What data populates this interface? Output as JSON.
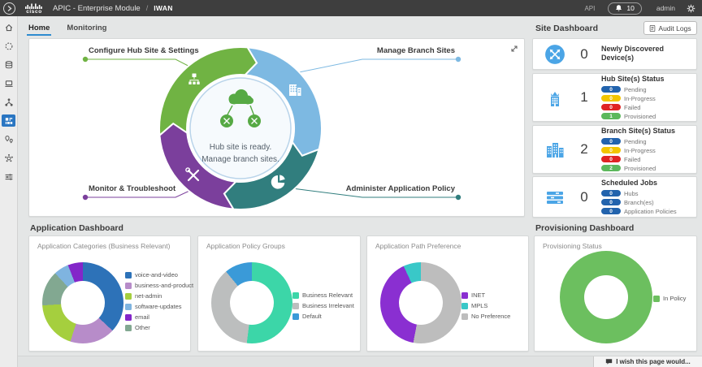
{
  "topbar": {
    "brand": "cisco",
    "app_title": "APIC - Enterprise Module",
    "separator": "/",
    "module": "IWAN",
    "api_label": "API",
    "notification_count": "10",
    "user": "admin"
  },
  "sidebar": {
    "active_index": 5,
    "items": [
      {
        "icon": "home-icon"
      },
      {
        "icon": "discovery-icon"
      },
      {
        "icon": "device-inventory-icon"
      },
      {
        "icon": "host-icon"
      },
      {
        "icon": "topology-icon"
      },
      {
        "icon": "iwan-icon"
      },
      {
        "icon": "places-icon"
      },
      {
        "icon": "services-icon"
      },
      {
        "icon": "settings-icon"
      }
    ]
  },
  "tabs": [
    {
      "label": "Home",
      "active": true
    },
    {
      "label": "Monitoring",
      "active": false
    }
  ],
  "wheel": {
    "labels": {
      "top_left": "Configure Hub Site & Settings",
      "top_right": "Manage Branch Sites",
      "bottom_left": "Monitor & Troubleshoot",
      "bottom_right": "Administer Application Policy"
    },
    "center": {
      "line1": "Hub site is ready.",
      "line2": "Manage branch sites."
    },
    "colors": {
      "configure_hub": "#70b343",
      "manage_branch": "#7db9e2",
      "administer_policy": "#317e7e",
      "monitor_troubleshoot": "#7b3f9c"
    }
  },
  "site_dashboard": {
    "title": "Site Dashboard",
    "audit_logs_label": "Audit Logs",
    "cards": [
      {
        "icon": "discovered-devices-icon",
        "count": "0",
        "title": "Newly Discovered Device(s)",
        "badges": []
      },
      {
        "icon": "hub-site-icon",
        "count": "1",
        "title": "Hub Site(s) Status",
        "badges": [
          {
            "value": "0",
            "label": "Pending",
            "color": "#2263ad"
          },
          {
            "value": "0",
            "label": "In-Progress",
            "color": "#f2c500"
          },
          {
            "value": "0",
            "label": "Failed",
            "color": "#e02424"
          },
          {
            "value": "1",
            "label": "Provisioned",
            "color": "#5cb85c"
          }
        ]
      },
      {
        "icon": "branch-sites-icon",
        "count": "2",
        "title": "Branch Site(s) Status",
        "badges": [
          {
            "value": "0",
            "label": "Pending",
            "color": "#2263ad"
          },
          {
            "value": "0",
            "label": "In-Progress",
            "color": "#f2c500"
          },
          {
            "value": "0",
            "label": "Failed",
            "color": "#e02424"
          },
          {
            "value": "2",
            "label": "Provisioned",
            "color": "#5cb85c"
          }
        ]
      },
      {
        "icon": "scheduled-jobs-icon",
        "count": "0",
        "title": "Scheduled Jobs",
        "badges": [
          {
            "value": "0",
            "label": "Hubs",
            "color": "#2263ad"
          },
          {
            "value": "0",
            "label": "Branch(es)",
            "color": "#2263ad"
          },
          {
            "value": "0",
            "label": "Application Policies",
            "color": "#2263ad"
          }
        ]
      }
    ]
  },
  "application_dashboard": {
    "title": "Application Dashboard"
  },
  "provisioning_dashboard": {
    "title": "Provisioning Dashboard"
  },
  "chart_data": [
    {
      "type": "pie",
      "donut": true,
      "unit": "percent",
      "title": "Application Categories (Business Relevant)",
      "legend_position": "right",
      "segments": [
        {
          "label": "voice-and-video",
          "value": 37,
          "color": "#2d72b8"
        },
        {
          "label": "business-and-product",
          "value": 18,
          "color": "#b78cc9"
        },
        {
          "label": "net-admin",
          "value": 19,
          "color": "#a5cf3e"
        },
        {
          "label": "Other",
          "value": 14,
          "color": "#82a891"
        },
        {
          "label": "software-updates",
          "value": 6,
          "color": "#7fb4e0"
        },
        {
          "label": "email",
          "value": 6,
          "color": "#8326c9"
        }
      ],
      "legend": [
        {
          "label": "voice-and-video",
          "color": "#2d72b8"
        },
        {
          "label": "business-and-product",
          "color": "#b78cc9"
        },
        {
          "label": "net-admin",
          "color": "#a5cf3e"
        },
        {
          "label": "software-updates",
          "color": "#7fb4e0"
        },
        {
          "label": "email",
          "color": "#8326c9"
        },
        {
          "label": "Other",
          "color": "#82a891"
        }
      ]
    },
    {
      "type": "pie",
      "donut": true,
      "unit": "percent",
      "title": "Application Policy Groups",
      "legend_position": "right",
      "segments": [
        {
          "label": "Business Relevant",
          "value": 52,
          "color": "#3cd6a8"
        },
        {
          "label": "Business Irrelevant",
          "value": 37,
          "color": "#bcbebe"
        },
        {
          "label": "Default",
          "value": 11,
          "color": "#3a9ad8"
        }
      ],
      "legend": [
        {
          "label": "Business Relevant",
          "color": "#3cd6a8"
        },
        {
          "label": "Business Irrelevant",
          "color": "#bcbebe"
        },
        {
          "label": "Default",
          "color": "#3a9ad8"
        }
      ]
    },
    {
      "type": "pie",
      "donut": true,
      "unit": "percent",
      "title": "Application Path Preference",
      "legend_position": "right",
      "segments": [
        {
          "label": "No Preference",
          "value": 53,
          "color": "#bdbdbd"
        },
        {
          "label": "INET",
          "value": 40,
          "color": "#8a2fd1"
        },
        {
          "label": "MPLS",
          "value": 7,
          "color": "#39c8c8"
        }
      ],
      "legend": [
        {
          "label": "INET",
          "color": "#8a2fd1"
        },
        {
          "label": "MPLS",
          "color": "#39c8c8"
        },
        {
          "label": "No Preference",
          "color": "#bdbdbd"
        }
      ]
    },
    {
      "type": "pie",
      "donut": true,
      "unit": "percent",
      "title": "Provisioning Status",
      "legend_position": "right",
      "segments": [
        {
          "label": "In Policy",
          "value": 100,
          "color": "#6cbf5f"
        }
      ],
      "legend": [
        {
          "label": "In Policy",
          "color": "#6cbf5f"
        }
      ]
    }
  ],
  "feedback": {
    "label": "I wish this page would..."
  }
}
